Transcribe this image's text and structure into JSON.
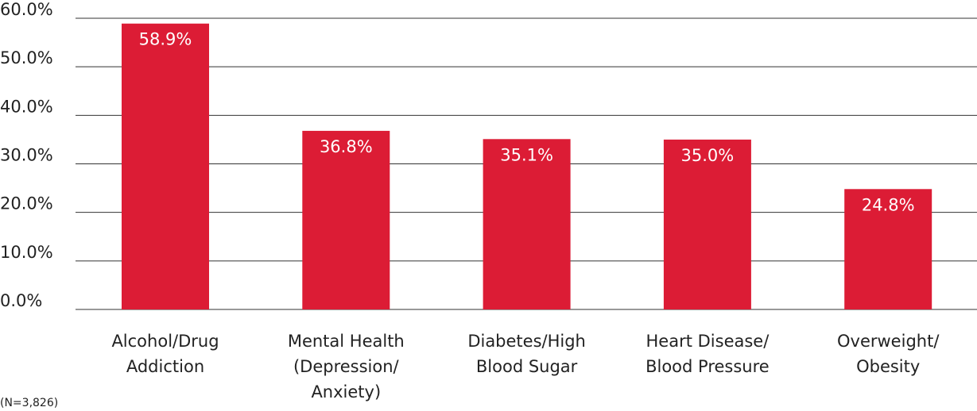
{
  "chart_data": {
    "type": "bar",
    "categories": [
      "Alcohol/Drug\nAddiction",
      "Mental Health\n(Depression/\nAnxiety)",
      "Diabetes/High\nBlood Sugar",
      "Heart Disease/\nBlood Pressure",
      "Overweight/\nObesity"
    ],
    "values": [
      58.9,
      36.8,
      35.1,
      35.0,
      24.8
    ],
    "value_labels": [
      "58.9%",
      "36.8%",
      "35.1%",
      "35.0%",
      "24.8%"
    ],
    "color": "#dc1c35",
    "ylim": [
      0,
      60
    ],
    "yticks": [
      {
        "value": 0,
        "label": "0.0%"
      },
      {
        "value": 10,
        "label": "10.0%"
      },
      {
        "value": 20,
        "label": "20.0%"
      },
      {
        "value": 30,
        "label": "30.0%"
      },
      {
        "value": 40,
        "label": "40.0%"
      },
      {
        "value": 50,
        "label": "50.0%"
      },
      {
        "value": 60,
        "label": "60.0%"
      }
    ],
    "grid": true,
    "annotation": "(N=3,826)"
  }
}
